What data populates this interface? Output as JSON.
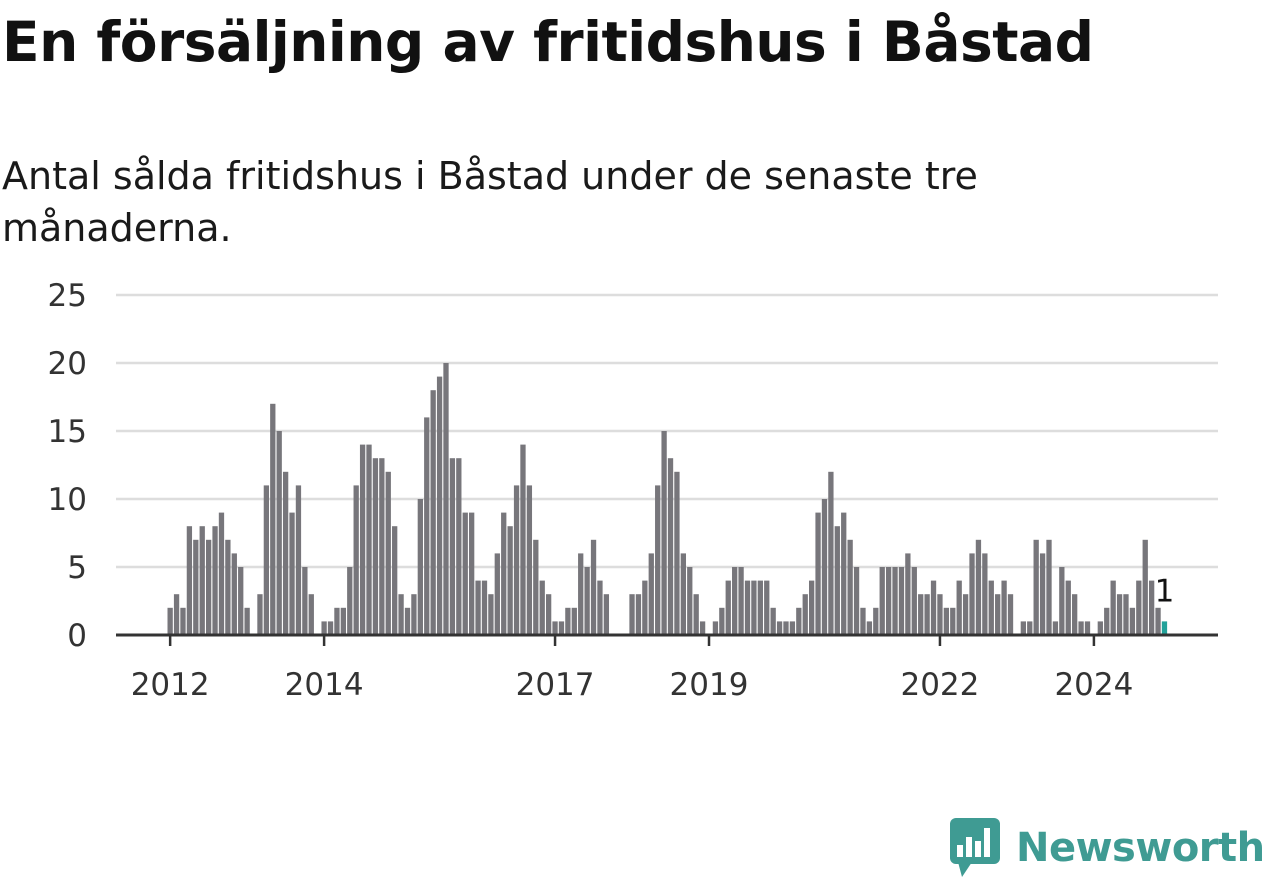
{
  "title": "En försäljning av fritidshus i Båstad",
  "subtitle": "Antal sålda fritidshus i Båstad under de senaste tre månaderna.",
  "brand": {
    "name": "Newsworthy",
    "icon": "newsworthy-logo-icon"
  },
  "colors": {
    "bar": "#77767b",
    "highlight": "#22a29a",
    "grid": "#dddddd",
    "axis": "#333333",
    "brand": "#3f9b93"
  },
  "chart_data": {
    "type": "bar",
    "title": "En försäljning av fritidshus i Båstad",
    "subtitle": "Antal sålda fritidshus i Båstad under de senaste tre månaderna.",
    "xlabel": "",
    "ylabel": "",
    "ylim": [
      0,
      25
    ],
    "yticks": [
      0,
      5,
      10,
      15,
      20,
      25
    ],
    "xticks": [
      {
        "label": "2012",
        "index": 0
      },
      {
        "label": "2014",
        "index": 24
      },
      {
        "label": "2017",
        "index": 60
      },
      {
        "label": "2019",
        "index": 84
      },
      {
        "label": "2022",
        "index": 120
      },
      {
        "label": "2024",
        "index": 144
      }
    ],
    "period": "month",
    "first_period": "2011-12",
    "values": [
      2,
      3,
      2,
      8,
      7,
      8,
      7,
      8,
      9,
      7,
      6,
      5,
      2,
      0,
      3,
      11,
      17,
      15,
      12,
      9,
      11,
      5,
      3,
      0,
      1,
      1,
      2,
      2,
      5,
      11,
      14,
      14,
      13,
      13,
      12,
      8,
      3,
      2,
      3,
      10,
      16,
      18,
      19,
      20,
      13,
      13,
      9,
      9,
      4,
      4,
      3,
      6,
      9,
      8,
      11,
      14,
      11,
      7,
      4,
      3,
      1,
      1,
      2,
      2,
      6,
      5,
      7,
      4,
      3,
      0,
      0,
      0,
      3,
      3,
      4,
      6,
      11,
      15,
      13,
      12,
      6,
      5,
      3,
      1,
      0,
      1,
      2,
      4,
      5,
      5,
      4,
      4,
      4,
      4,
      2,
      1,
      1,
      1,
      2,
      3,
      4,
      9,
      10,
      12,
      8,
      9,
      7,
      5,
      2,
      1,
      2,
      5,
      5,
      5,
      5,
      6,
      5,
      3,
      3,
      4,
      3,
      2,
      2,
      4,
      3,
      6,
      7,
      6,
      4,
      3,
      4,
      3,
      0,
      1,
      1,
      7,
      6,
      7,
      1,
      5,
      4,
      3,
      1,
      1,
      0,
      1,
      2,
      4,
      3,
      3,
      2,
      4,
      7,
      4,
      2,
      1
    ],
    "highlight": {
      "index": 155,
      "value": 1,
      "label": "1"
    },
    "grid": true,
    "legend": "none"
  }
}
